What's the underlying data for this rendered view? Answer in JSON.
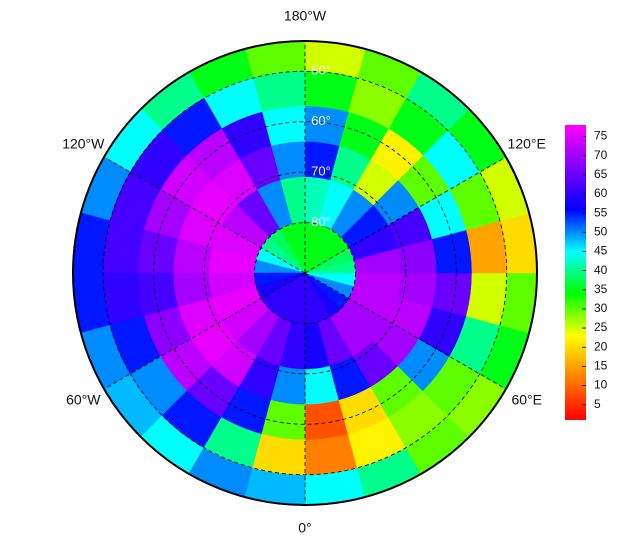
{
  "field": {
    "lat_edges": [
      44,
      50,
      57,
      64,
      71,
      80,
      90
    ],
    "values": [
      [
        45,
        40,
        30,
        28,
        35,
        30,
        20,
        25,
        35,
        40,
        30,
        25,
        30,
        35,
        40,
        45,
        50,
        55,
        55,
        50,
        48,
        45,
        50,
        48
      ],
      [
        12,
        22,
        28,
        30,
        40,
        25,
        15,
        30,
        45,
        35,
        28,
        35,
        40,
        45,
        55,
        60,
        62,
        62,
        60,
        55,
        50,
        55,
        40,
        20
      ],
      [
        8,
        20,
        30,
        50,
        60,
        65,
        55,
        45,
        30,
        22,
        35,
        50,
        45,
        60,
        72,
        74,
        70,
        65,
        62,
        68,
        72,
        65,
        55,
        30
      ],
      [
        45,
        55,
        65,
        70,
        72,
        70,
        68,
        62,
        50,
        25,
        40,
        55,
        50,
        65,
        75,
        76,
        75,
        72,
        70,
        75,
        76,
        74,
        60,
        50
      ],
      [
        58,
        65,
        70,
        70,
        72,
        72,
        70,
        60,
        55,
        50,
        45,
        42,
        40,
        50,
        65,
        72,
        75,
        76,
        74,
        76,
        74,
        70,
        65,
        60
      ],
      [
        60,
        60,
        58,
        55,
        50,
        45,
        40,
        38,
        35,
        35,
        35,
        35,
        35,
        35,
        38,
        40,
        45,
        50,
        55,
        58,
        60,
        60,
        60,
        60
      ]
    ]
  },
  "lat_lines": [
    {
      "value": 50,
      "label": "50°"
    },
    {
      "value": 60,
      "label": "60°"
    },
    {
      "value": 70,
      "label": "70°"
    },
    {
      "value": 80,
      "label": "80°"
    }
  ],
  "lon_lines": [
    {
      "value": 0,
      "label": "0°"
    },
    {
      "value": 60,
      "label": "60°E"
    },
    {
      "value": 120,
      "label": "120°E"
    },
    {
      "value": 180,
      "label": "180°W"
    },
    {
      "value": 240,
      "label": "120°W"
    },
    {
      "value": 300,
      "label": "60°W"
    }
  ],
  "colorbar": {
    "clim": [
      1,
      78
    ],
    "ticks": [
      5,
      10,
      15,
      20,
      25,
      30,
      35,
      40,
      45,
      50,
      55,
      60,
      65,
      70,
      75
    ],
    "colormap": [
      "#ff0000",
      "#ff8000",
      "#ffff00",
      "#00ff00",
      "#00ffff",
      "#0000ff",
      "#8000ff",
      "#ff00ff"
    ]
  }
}
